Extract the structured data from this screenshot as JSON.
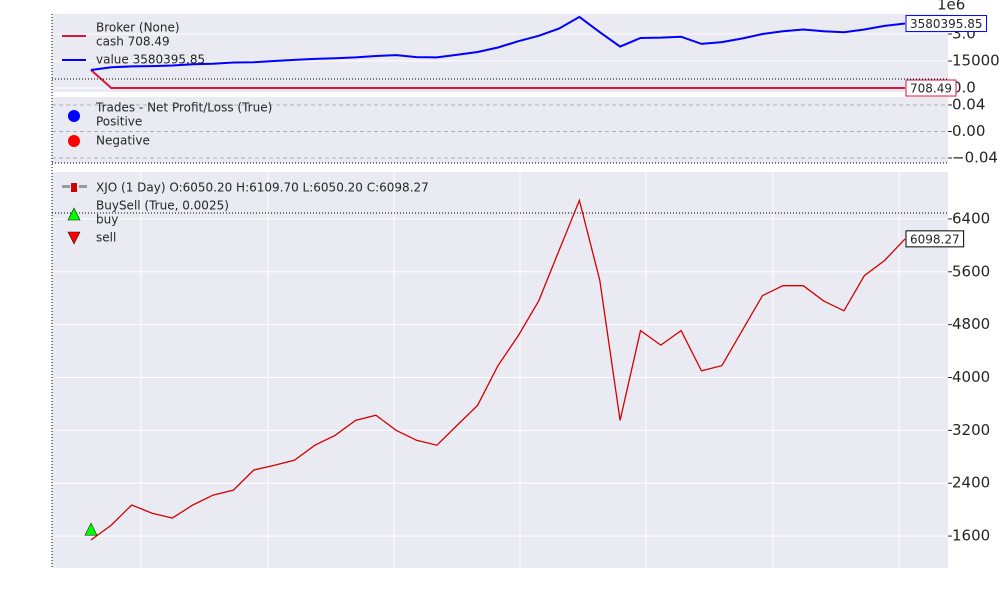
{
  "chart_data": [
    {
      "type": "line",
      "title": "Broker (None)",
      "axis_offset_label": "1e6",
      "ylim": [
        -220000,
        4110000
      ],
      "yticks": [
        {
          "value": 0,
          "label": "0.0"
        },
        1500000.0,
        {
          "value": 3000000,
          "label": "3.0"
        }
      ],
      "grid": true,
      "series": [
        {
          "name": "cash 708.49",
          "color": "#dc143c",
          "values": [
            1000000,
            708.49,
            708.49,
            708.49,
            708.49,
            708.49,
            708.49,
            708.49,
            708.49,
            708.49,
            708.49,
            708.49,
            708.49,
            708.49,
            708.49,
            708.49,
            708.49,
            708.49,
            708.49,
            708.49,
            708.49,
            708.49,
            708.49,
            708.49,
            708.49,
            708.49,
            708.49,
            708.49,
            708.49,
            708.49,
            708.49,
            708.49,
            708.49,
            708.49,
            708.49,
            708.49,
            708.49,
            708.49,
            708.49,
            708.49,
            708.49
          ]
        },
        {
          "name": "value 3580395.85",
          "color": "#0000ff",
          "values": [
            1000000,
            1150000,
            1200000,
            1220000,
            1250000,
            1320000,
            1350000,
            1420000,
            1430000,
            1500000,
            1560000,
            1620000,
            1650000,
            1700000,
            1780000,
            1830000,
            1720000,
            1700000,
            1850000,
            2000000,
            2250000,
            2600000,
            2900000,
            3300000,
            3950000,
            3100000,
            2300000,
            2780000,
            2800000,
            2850000,
            2450000,
            2550000,
            2750000,
            3000000,
            3150000,
            3250000,
            3150000,
            3100000,
            3250000,
            3450000,
            3580395.85
          ]
        }
      ]
    },
    {
      "type": "scatter",
      "title": "Trades - Net Profit/Loss (True)",
      "ylim": [
        -0.0475,
        0.052
      ],
      "yticks": [
        0.04,
        {
          "value": 0,
          "label": "0.00"
        },
        {
          "value": -0.04,
          "label": "−0.04"
        }
      ],
      "grid": true,
      "series": [
        {
          "name": "Positive",
          "color": "#0000ff",
          "values": []
        },
        {
          "name": "Negative",
          "color": "#ff0000",
          "values": []
        }
      ]
    },
    {
      "type": "line",
      "indicator": "BuySell (True, 0.0025)",
      "ylim": [
        1117,
        7110
      ],
      "yticks": [
        1600,
        2400,
        3200,
        4000,
        4800,
        5600,
        6400
      ],
      "grid": true,
      "series": [
        {
          "name": "XJO (1 Day) O:6050.20 H:6109.70 L:6050.20 C:6098.27",
          "color": "#d40000",
          "values": [
            1540,
            1766,
            2070,
            1947,
            1872,
            2070,
            2220,
            2296,
            2600,
            2670,
            2750,
            2975,
            3125,
            3350,
            3430,
            3200,
            3050,
            2975,
            3280,
            3580,
            4180,
            4635,
            5160,
            5920,
            6680,
            5470,
            3350,
            4710,
            4490,
            4710,
            4100,
            4180,
            4710,
            5240,
            5390,
            5390,
            5160,
            5010,
            5540,
            5770,
            6098.27
          ]
        }
      ],
      "markers": [
        {
          "name": "buy",
          "color": "#00ff00",
          "shape": "triangle-up",
          "values": [
            1690,
            null,
            null,
            null,
            null,
            null,
            null,
            null,
            null,
            null,
            null,
            null,
            null,
            null,
            null,
            null,
            null,
            null,
            null,
            null,
            null,
            null,
            null,
            null,
            null,
            null,
            null,
            null,
            null,
            null,
            null,
            null,
            null,
            null,
            null,
            null,
            null,
            null,
            null,
            null,
            null
          ]
        },
        {
          "name": "sell",
          "color": "#ff0000",
          "shape": "triangle-down",
          "values": [
            null,
            null,
            null,
            null,
            null,
            null,
            null,
            null,
            null,
            null,
            null,
            null,
            null,
            null,
            null,
            null,
            null,
            null,
            null,
            null,
            null,
            null,
            null,
            null,
            null,
            null,
            null,
            null,
            null,
            null,
            null,
            null,
            null,
            null,
            null,
            null,
            null,
            null,
            null,
            null,
            null
          ]
        }
      ]
    }
  ]
}
